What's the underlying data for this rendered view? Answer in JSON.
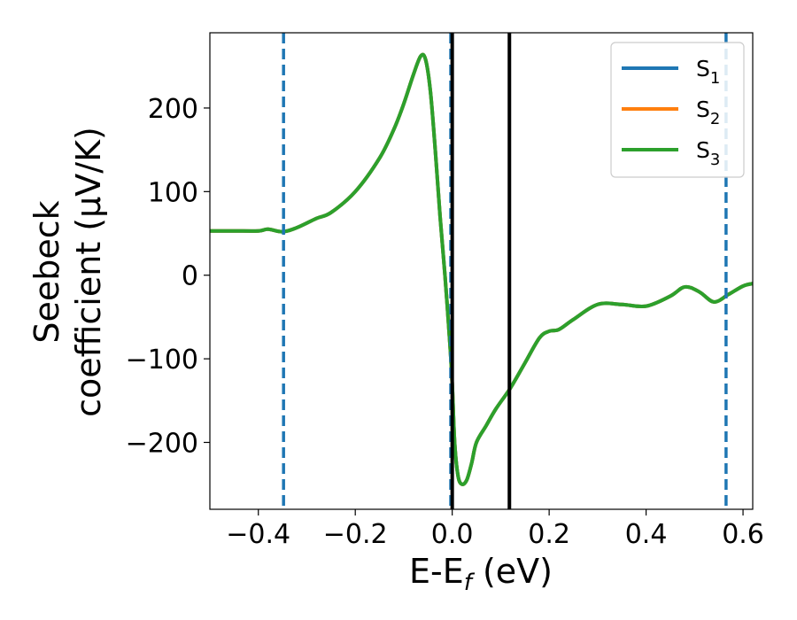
{
  "chart_data": {
    "type": "line",
    "xlabel": {
      "main": "E-E",
      "sub": "f",
      "rest": " (eV)"
    },
    "ylabel": {
      "line1": "Seebeck",
      "line2": "coefficient  (μV/K)"
    },
    "xlim": [
      -0.5,
      0.62
    ],
    "ylim": [
      -280,
      290
    ],
    "xticks": [
      -0.4,
      -0.2,
      0.0,
      0.2,
      0.4,
      0.6
    ],
    "xtick_labels": [
      "−0.4",
      "−0.2",
      "0.0",
      "0.2",
      "0.4",
      "0.6"
    ],
    "yticks": [
      -200,
      -100,
      0,
      100,
      200
    ],
    "ytick_labels": [
      "−200",
      "−100",
      "0",
      "100",
      "200"
    ],
    "grid": false,
    "legend": {
      "placement": "top-right",
      "entries": [
        {
          "main": "S",
          "sub": "1",
          "color": "#1f77b4"
        },
        {
          "main": "S",
          "sub": "2",
          "color": "#ff7f0e"
        },
        {
          "main": "S",
          "sub": "3",
          "color": "#2ca02c"
        }
      ]
    },
    "x": [
      -0.5,
      -0.45,
      -0.4,
      -0.38,
      -0.35,
      -0.32,
      -0.28,
      -0.25,
      -0.2,
      -0.15,
      -0.12,
      -0.1,
      -0.08,
      -0.065,
      -0.055,
      -0.045,
      -0.035,
      -0.025,
      -0.015,
      -0.005,
      0.0,
      0.005,
      0.012,
      0.02,
      0.03,
      0.04,
      0.05,
      0.07,
      0.09,
      0.12,
      0.15,
      0.18,
      0.2,
      0.22,
      0.25,
      0.3,
      0.35,
      0.4,
      0.45,
      0.48,
      0.51,
      0.54,
      0.57,
      0.6,
      0.62
    ],
    "series": [
      {
        "name": "S₁",
        "color": "#1f77b4",
        "values": [
          53,
          53,
          53,
          55,
          52,
          57,
          68,
          75,
          100,
          140,
          175,
          205,
          240,
          262,
          258,
          220,
          150,
          70,
          0,
          -80,
          -130,
          -200,
          -240,
          -250,
          -245,
          -225,
          -200,
          -180,
          -160,
          -135,
          -105,
          -75,
          -67,
          -65,
          -53,
          -35,
          -35,
          -37,
          -25,
          -14,
          -20,
          -32,
          -23,
          -13,
          -10
        ]
      },
      {
        "name": "S₂",
        "color": "#ff7f0e",
        "values": [
          53,
          53,
          53,
          55,
          52,
          57,
          68,
          75,
          100,
          140,
          175,
          205,
          240,
          262,
          258,
          220,
          150,
          70,
          0,
          -80,
          -130,
          -200,
          -240,
          -250,
          -245,
          -225,
          -200,
          -180,
          -160,
          -135,
          -105,
          -75,
          -67,
          -65,
          -53,
          -35,
          -35,
          -37,
          -25,
          -14,
          -20,
          -32,
          -23,
          -13,
          -10
        ]
      },
      {
        "name": "S₃",
        "color": "#2ca02c",
        "values": [
          53,
          53,
          53,
          55,
          52,
          57,
          68,
          75,
          100,
          140,
          175,
          205,
          240,
          262,
          258,
          220,
          150,
          70,
          0,
          -80,
          -130,
          -200,
          -240,
          -250,
          -245,
          -225,
          -200,
          -180,
          -160,
          -135,
          -105,
          -75,
          -67,
          -65,
          -53,
          -35,
          -35,
          -37,
          -25,
          -14,
          -20,
          -32,
          -23,
          -13,
          -10
        ]
      }
    ],
    "vlines": [
      {
        "x": -0.348,
        "style": "dashed",
        "color": "#1f77b4"
      },
      {
        "x": -0.003,
        "style": "dashed",
        "color": "#1f77b4"
      },
      {
        "x": 0.565,
        "style": "dashed",
        "color": "#1f77b4"
      },
      {
        "x": 0.0,
        "style": "solid",
        "color": "#000000"
      },
      {
        "x": 0.118,
        "style": "solid",
        "color": "#000000"
      }
    ]
  }
}
